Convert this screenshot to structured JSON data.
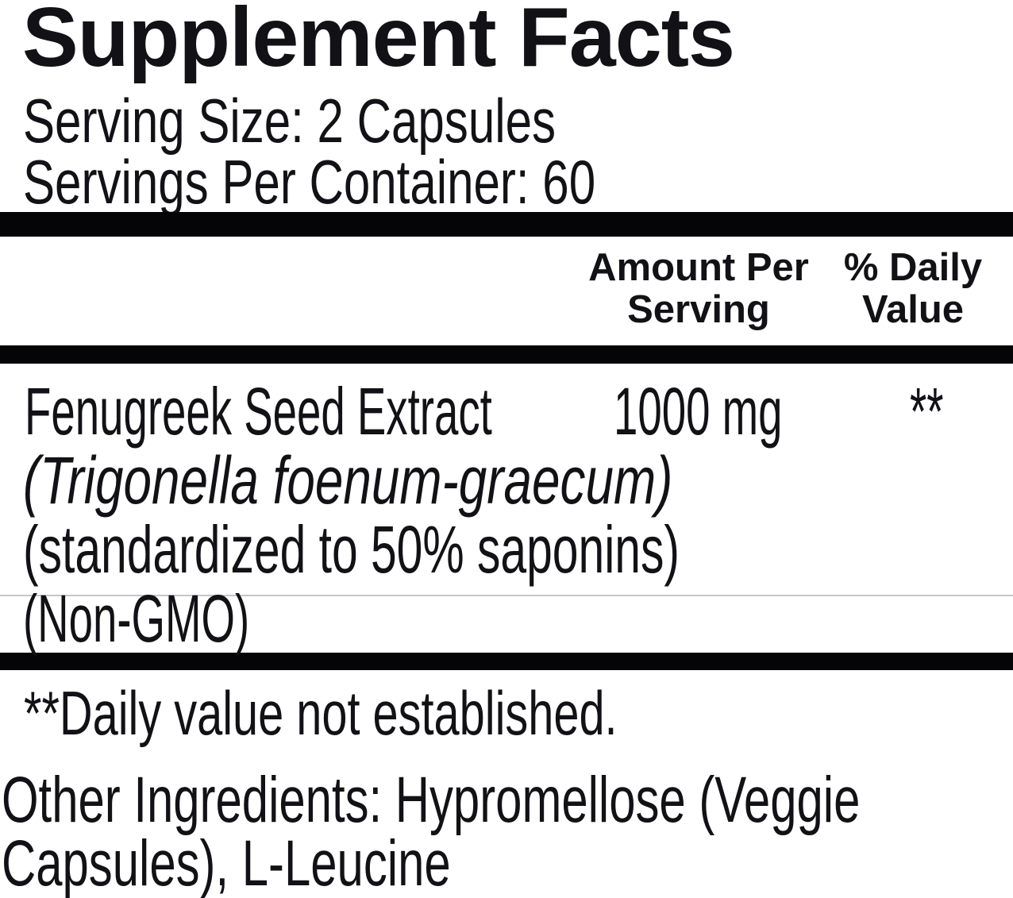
{
  "label": {
    "title": "Supplement Facts",
    "serving_size": "Serving Size: 2 Capsules",
    "servings_per_container": "Servings Per Container: 60",
    "columns": {
      "amount_line1": "Amount Per",
      "amount_line2": "Serving",
      "dv_line1": "% Daily",
      "dv_line2": "Value"
    },
    "ingredient": {
      "name": "Fenugreek Seed Extract",
      "amount": "1000 mg",
      "daily_value": "**",
      "sub_lines": [
        "(Trigonella foenum-graecum)",
        "(standardized to 50% saponins)",
        "(Non-GMO)"
      ]
    },
    "footnote": "**Daily value not established.",
    "other_ingredients": {
      "line1": "Other Ingredients: Hypromellose (Veggie",
      "line2": "Capsules), L-Leucine"
    },
    "colors": {
      "text": "#121216",
      "divider_bar": "#050507",
      "hairline": "#c6c6c6",
      "background": "#ffffff"
    }
  }
}
